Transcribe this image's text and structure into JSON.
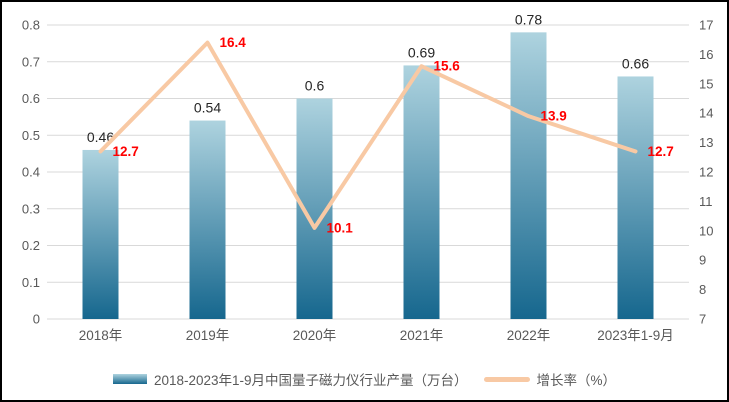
{
  "chart_data": {
    "type": "bar+line",
    "title": "",
    "categories": [
      "2018年",
      "2019年",
      "2020年",
      "2021年",
      "2022年",
      "2023年1-9月"
    ],
    "series": [
      {
        "name": "2018-2023年1-9月中国量子磁力仪行业产量（万台）",
        "type": "bar",
        "axis": "left",
        "values": [
          0.46,
          0.54,
          0.6,
          0.69,
          0.78,
          0.66
        ],
        "labels": [
          "0.46",
          "0.54",
          "0.6",
          "0.69",
          "0.78",
          "0.66"
        ]
      },
      {
        "name": "增长率（%）",
        "type": "line",
        "axis": "right",
        "values": [
          12.7,
          16.4,
          10.1,
          15.6,
          13.9,
          12.7
        ],
        "labels": [
          "12.7",
          "16.4",
          "10.1",
          "15.6",
          "13.9",
          "12.7"
        ]
      }
    ],
    "left_axis": {
      "min": 0,
      "max": 0.8,
      "step": 0.1,
      "ticks": [
        "0",
        "0.1",
        "0.2",
        "0.3",
        "0.4",
        "0.5",
        "0.6",
        "0.7",
        "0.8"
      ]
    },
    "right_axis": {
      "min": 7,
      "max": 17,
      "step": 1,
      "ticks": [
        "7",
        "8",
        "9",
        "10",
        "11",
        "12",
        "13",
        "14",
        "15",
        "16",
        "17"
      ]
    },
    "grid": true,
    "legend_position": "bottom",
    "colors": {
      "bar_top": "#aed3df",
      "bar_bottom": "#16678e",
      "line": "#f8c9a4",
      "bar_label": "#262626",
      "line_label": "#ff0000",
      "axis_label": "#595959",
      "gridline": "#d9d9d9"
    }
  }
}
